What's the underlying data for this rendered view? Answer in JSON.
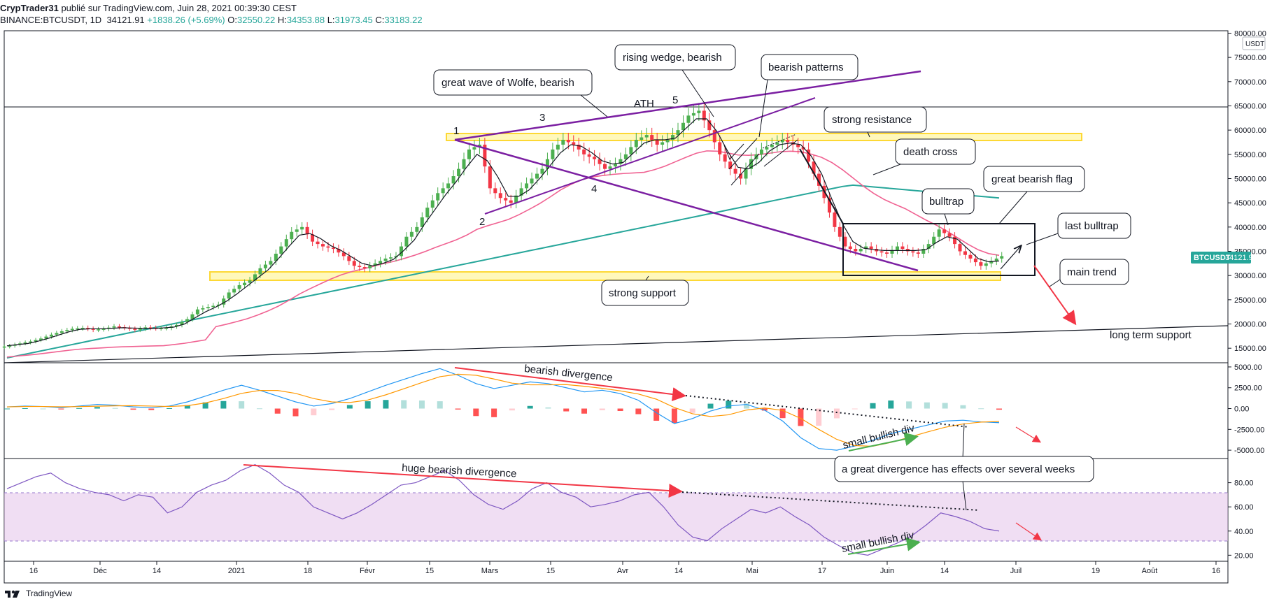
{
  "header": {
    "line1_author": "CrypTrader31",
    "line1_rest": " publié sur TradingView.com, Juin 28, 2021 00:39:30 CEST",
    "symbol": "BINANCE:BTCUSDT, 1D",
    "last": "34121.91",
    "change": "+1838.26 (+5.69%)",
    "o_label": "O:",
    "o": "32550.22",
    "h_label": "H:",
    "h": "34353.88",
    "l_label": "L:",
    "l": "31973.45",
    "c_label": "C:",
    "c": "33183.22"
  },
  "price_badge": {
    "symbol": "BTCUSDT",
    "value": "34121.91"
  },
  "currency_badge": "USDT",
  "footer_brand": "TradingView",
  "colors": {
    "up": "#4caf50",
    "down": "#f23645",
    "ma_short": "#131722",
    "ma_mid": "#f06292",
    "ma_long": "#26a69a",
    "wedge": "#7b1fa2",
    "zone": "#ffeb3b",
    "rsi": "#7e57c2",
    "macd": "#2196f3",
    "signal": "#ff9800"
  },
  "chart_data": [
    {
      "type": "candlestick",
      "pane": "price",
      "yaxis_ticks": [
        "80000.00",
        "75000.00",
        "70000.00",
        "65000.00",
        "60000.00",
        "55000.00",
        "50000.00",
        "45000.00",
        "40000.00",
        "35000.00",
        "30000.00",
        "25000.00",
        "20000.00",
        "15000.00"
      ],
      "ylim": [
        12000,
        80500
      ],
      "xaxis_ticks": [
        "16",
        "Déc",
        "14",
        "2021",
        "18",
        "Févr",
        "15",
        "Mars",
        "15",
        "Avr",
        "14",
        "Mai",
        "17",
        "Juin",
        "14",
        "Juil",
        "19",
        "Août",
        "16"
      ],
      "annotations": {
        "wave_wolfe": "great wave of Wolfe, bearish",
        "rising_wedge": "rising wedge, bearish",
        "bearish_patterns": "bearish patterns",
        "strong_resistance": "strong resistance",
        "death_cross": "death cross",
        "great_bearish_flag": "great bearish flag",
        "bulltrap": "bulltrap",
        "last_bulltrap": "last bulltrap",
        "main_trend": "main trend",
        "strong_support": "strong support",
        "long_term_support": "long term support",
        "ath": "ATH",
        "wave_points": [
          "1",
          "2",
          "3",
          "4",
          "5"
        ]
      },
      "approx_close_series": [
        15500,
        16000,
        16400,
        17000,
        17800,
        18500,
        19000,
        19200,
        18800,
        19000,
        19500,
        19200,
        18800,
        19300,
        19100,
        19200,
        19800,
        21000,
        23000,
        23500,
        24000,
        26500,
        28000,
        29000,
        31500,
        33000,
        36000,
        39000,
        40000,
        37000,
        36000,
        35500,
        34000,
        32000,
        31500,
        32500,
        33500,
        34000,
        38000,
        40000,
        44000,
        47000,
        49000,
        52000,
        56000,
        57000,
        48000,
        46000,
        45000,
        48000,
        50000,
        52000,
        56000,
        58000,
        57000,
        55000,
        54000,
        52000,
        53000,
        55000,
        58000,
        59000,
        57000,
        58000,
        60000,
        63000,
        64000,
        60000,
        55000,
        52000,
        50000,
        54000,
        56000,
        57000,
        58000,
        57000,
        56000,
        51000,
        46000,
        40000,
        36000,
        35000,
        36000,
        35000,
        34500,
        36000,
        35000,
        34500,
        36500,
        39500,
        38000,
        35000,
        33500,
        32000,
        33000,
        34000
      ],
      "moving_averages": [
        "short MA (black)",
        "mid MA (pink)",
        "long MA (teal)"
      ]
    },
    {
      "type": "line",
      "pane": "macd",
      "yaxis_ticks": [
        "5000.00",
        "2500.00",
        "0.00",
        "-2500.00",
        "-5000.00"
      ],
      "ylim": [
        -6000,
        5500
      ],
      "annotations": {
        "bearish_divergence": "bearish divergence",
        "small_bullish_div": "small bullish div"
      },
      "series": [
        {
          "name": "MACD",
          "values": [
            200,
            300,
            250,
            100,
            300,
            500,
            400,
            200,
            100,
            300,
            800,
            1500,
            2200,
            2800,
            2200,
            1500,
            800,
            300,
            600,
            1200,
            2000,
            2800,
            3500,
            4200,
            4800,
            4000,
            3000,
            2400,
            2800,
            3200,
            3000,
            2500,
            2000,
            2200,
            1800,
            1000,
            -500,
            -1800,
            -1200,
            -300,
            300,
            500,
            -200,
            -1500,
            -3500,
            -4800,
            -5000,
            -4500,
            -3800,
            -3000,
            -2500,
            -2000,
            -1500,
            -1400,
            -1600,
            -1700
          ]
        }
      ]
    },
    {
      "type": "line",
      "pane": "rsi",
      "yaxis_ticks": [
        "80.00",
        "60.00",
        "40.00",
        "20.00"
      ],
      "ylim": [
        15,
        100
      ],
      "annotations": {
        "huge_bearish_divergence": "huge bearish divergence",
        "small_bullish_div": "small bullish div",
        "great_divergence": "a great divergence has effects over several weeks"
      },
      "series": [
        {
          "name": "RSI",
          "values": [
            75,
            80,
            85,
            88,
            80,
            75,
            72,
            70,
            65,
            70,
            68,
            55,
            60,
            72,
            78,
            82,
            90,
            95,
            88,
            78,
            72,
            60,
            55,
            50,
            55,
            62,
            70,
            78,
            80,
            85,
            90,
            82,
            70,
            62,
            58,
            65,
            75,
            80,
            72,
            68,
            60,
            62,
            65,
            70,
            72,
            60,
            45,
            35,
            32,
            42,
            50,
            58,
            55,
            60,
            52,
            45,
            35,
            28,
            22,
            20,
            25,
            30,
            36,
            45,
            55,
            52,
            48,
            42,
            40
          ]
        }
      ]
    }
  ]
}
